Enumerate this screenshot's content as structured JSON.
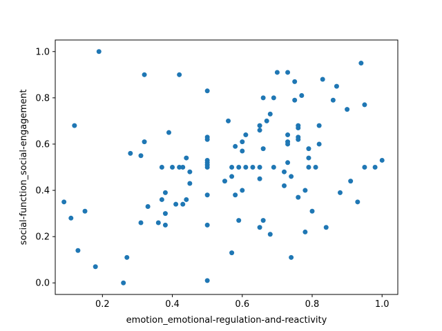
{
  "chart_data": {
    "type": "scatter",
    "xlabel": "emotion_emotional-regulation-and-reactivity",
    "ylabel": "social-function_social-engagement",
    "xlim": [
      0.065,
      1.045
    ],
    "ylim": [
      -0.05,
      1.05
    ],
    "xticks": [
      "0.2",
      "0.4",
      "0.6",
      "0.8",
      "1.0"
    ],
    "xtick_values": [
      0.2,
      0.4,
      0.6,
      0.8,
      1.0
    ],
    "yticks": [
      "0.0",
      "0.2",
      "0.4",
      "0.6",
      "0.8",
      "1.0"
    ],
    "ytick_values": [
      0.0,
      0.2,
      0.4,
      0.6,
      0.8,
      1.0
    ],
    "grid": false,
    "marker_color": "#1f77b4",
    "points": [
      [
        0.09,
        0.35
      ],
      [
        0.11,
        0.28
      ],
      [
        0.12,
        0.68
      ],
      [
        0.13,
        0.14
      ],
      [
        0.15,
        0.31
      ],
      [
        0.18,
        0.07
      ],
      [
        0.19,
        1.0
      ],
      [
        0.26,
        0.0
      ],
      [
        0.27,
        0.11
      ],
      [
        0.28,
        0.56
      ],
      [
        0.31,
        0.55
      ],
      [
        0.31,
        0.26
      ],
      [
        0.32,
        0.9
      ],
      [
        0.32,
        0.61
      ],
      [
        0.33,
        0.33
      ],
      [
        0.36,
        0.26
      ],
      [
        0.37,
        0.5
      ],
      [
        0.37,
        0.36
      ],
      [
        0.38,
        0.39
      ],
      [
        0.38,
        0.3
      ],
      [
        0.38,
        0.25
      ],
      [
        0.39,
        0.65
      ],
      [
        0.4,
        0.5
      ],
      [
        0.41,
        0.34
      ],
      [
        0.42,
        0.9
      ],
      [
        0.42,
        0.5
      ],
      [
        0.43,
        0.5
      ],
      [
        0.43,
        0.34
      ],
      [
        0.44,
        0.54
      ],
      [
        0.44,
        0.36
      ],
      [
        0.45,
        0.48
      ],
      [
        0.45,
        0.43
      ],
      [
        0.5,
        0.83
      ],
      [
        0.5,
        0.63
      ],
      [
        0.5,
        0.62
      ],
      [
        0.5,
        0.53
      ],
      [
        0.5,
        0.52
      ],
      [
        0.5,
        0.51
      ],
      [
        0.5,
        0.5
      ],
      [
        0.5,
        0.38
      ],
      [
        0.5,
        0.25
      ],
      [
        0.5,
        0.01
      ],
      [
        0.55,
        0.44
      ],
      [
        0.56,
        0.7
      ],
      [
        0.57,
        0.5
      ],
      [
        0.57,
        0.46
      ],
      [
        0.57,
        0.13
      ],
      [
        0.58,
        0.59
      ],
      [
        0.58,
        0.38
      ],
      [
        0.59,
        0.5
      ],
      [
        0.59,
        0.27
      ],
      [
        0.6,
        0.61
      ],
      [
        0.6,
        0.57
      ],
      [
        0.6,
        0.4
      ],
      [
        0.61,
        0.64
      ],
      [
        0.61,
        0.5
      ],
      [
        0.63,
        0.5
      ],
      [
        0.65,
        0.68
      ],
      [
        0.65,
        0.66
      ],
      [
        0.65,
        0.5
      ],
      [
        0.65,
        0.45
      ],
      [
        0.65,
        0.24
      ],
      [
        0.66,
        0.8
      ],
      [
        0.66,
        0.58
      ],
      [
        0.66,
        0.27
      ],
      [
        0.67,
        0.7
      ],
      [
        0.68,
        0.73
      ],
      [
        0.68,
        0.21
      ],
      [
        0.69,
        0.8
      ],
      [
        0.69,
        0.5
      ],
      [
        0.7,
        0.91
      ],
      [
        0.72,
        0.48
      ],
      [
        0.72,
        0.42
      ],
      [
        0.73,
        0.91
      ],
      [
        0.73,
        0.64
      ],
      [
        0.73,
        0.61
      ],
      [
        0.73,
        0.6
      ],
      [
        0.73,
        0.52
      ],
      [
        0.74,
        0.46
      ],
      [
        0.74,
        0.11
      ],
      [
        0.75,
        0.87
      ],
      [
        0.75,
        0.79
      ],
      [
        0.76,
        0.68
      ],
      [
        0.76,
        0.67
      ],
      [
        0.76,
        0.63
      ],
      [
        0.76,
        0.62
      ],
      [
        0.76,
        0.37
      ],
      [
        0.77,
        0.81
      ],
      [
        0.78,
        0.4
      ],
      [
        0.78,
        0.22
      ],
      [
        0.79,
        0.58
      ],
      [
        0.79,
        0.54
      ],
      [
        0.79,
        0.5
      ],
      [
        0.8,
        0.31
      ],
      [
        0.81,
        0.5
      ],
      [
        0.82,
        0.68
      ],
      [
        0.82,
        0.6
      ],
      [
        0.83,
        0.88
      ],
      [
        0.84,
        0.24
      ],
      [
        0.86,
        0.79
      ],
      [
        0.87,
        0.85
      ],
      [
        0.88,
        0.39
      ],
      [
        0.9,
        0.75
      ],
      [
        0.91,
        0.44
      ],
      [
        0.93,
        0.35
      ],
      [
        0.94,
        0.95
      ],
      [
        0.95,
        0.77
      ],
      [
        0.95,
        0.5
      ],
      [
        0.98,
        0.5
      ],
      [
        1.0,
        0.53
      ]
    ]
  }
}
